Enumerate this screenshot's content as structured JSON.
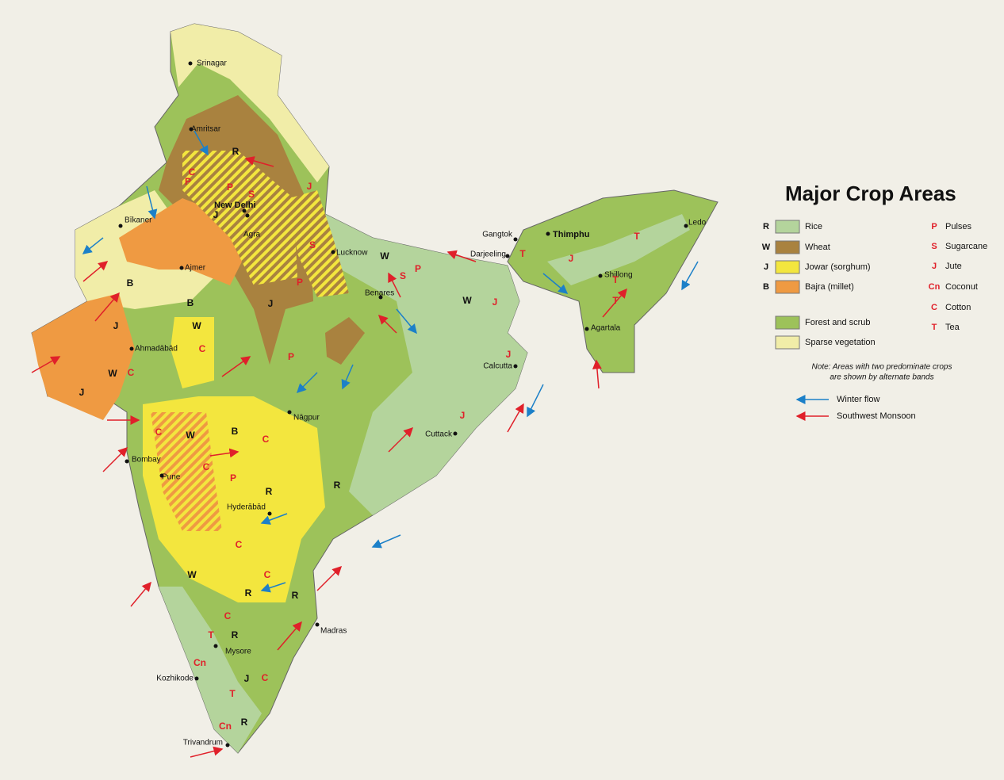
{
  "title": "Major Crop Areas",
  "legend": {
    "areas": [
      {
        "letter": "R",
        "label": "Rice",
        "color": "#b4d49c"
      },
      {
        "letter": "W",
        "label": "Wheat",
        "color": "#a9823f"
      },
      {
        "letter": "J",
        "label": "Jowar (sorghum)",
        "color": "#f3e63e"
      },
      {
        "letter": "B",
        "label": "Bajra (millet)",
        "color": "#ef9a42"
      },
      {
        "label": "Forest and scrub",
        "color": "#9dc25a"
      },
      {
        "label": "Sparse vegetation",
        "color": "#f1eda8"
      }
    ],
    "crops": [
      {
        "letter": "P",
        "label": "Pulses"
      },
      {
        "letter": "S",
        "label": "Sugarcane"
      },
      {
        "letter": "J",
        "label": "Jute"
      },
      {
        "letter": "Cn",
        "label": "Coconut"
      },
      {
        "letter": "C",
        "label": "Cotton"
      },
      {
        "letter": "T",
        "label": "Tea"
      }
    ],
    "note": [
      "Note: Areas with two predominate crops",
      "are shown by alternate bands"
    ],
    "flows": [
      {
        "label": "Winter flow",
        "color": "#1c80c8"
      },
      {
        "label": "Southwest Monsoon",
        "color": "#e0202a"
      }
    ]
  },
  "cities": [
    "Srinagar",
    "Amritsar",
    "New Delhi",
    "Bīkaner",
    "Ajmer",
    "Agra",
    "Lucknow",
    "Benares",
    "Ahmadābād",
    "Nāgpur",
    "Bombay",
    "Pune",
    "Hyderābād",
    "Madras",
    "Mysore",
    "Kozhikode",
    "Trivandrum",
    "Calcutta",
    "Cuttack",
    "Gangtok",
    "Darjeeling",
    "Thimphu",
    "Shillong",
    "Agartala",
    "Ledo"
  ],
  "crop_marks": [
    "R",
    "C",
    "P",
    "P",
    "S",
    "J",
    "J",
    "S",
    "P",
    "J",
    "W",
    "S",
    "P",
    "W",
    "J",
    "B",
    "B",
    "J",
    "W",
    "C",
    "W",
    "C",
    "J",
    "P",
    "J",
    "J",
    "C",
    "W",
    "B",
    "C",
    "C",
    "P",
    "R",
    "R",
    "C",
    "W",
    "C",
    "R",
    "R",
    "C",
    "T",
    "R",
    "Cn",
    "J",
    "C",
    "T",
    "Cn",
    "R",
    "J",
    "T",
    "T",
    "T",
    "T"
  ]
}
